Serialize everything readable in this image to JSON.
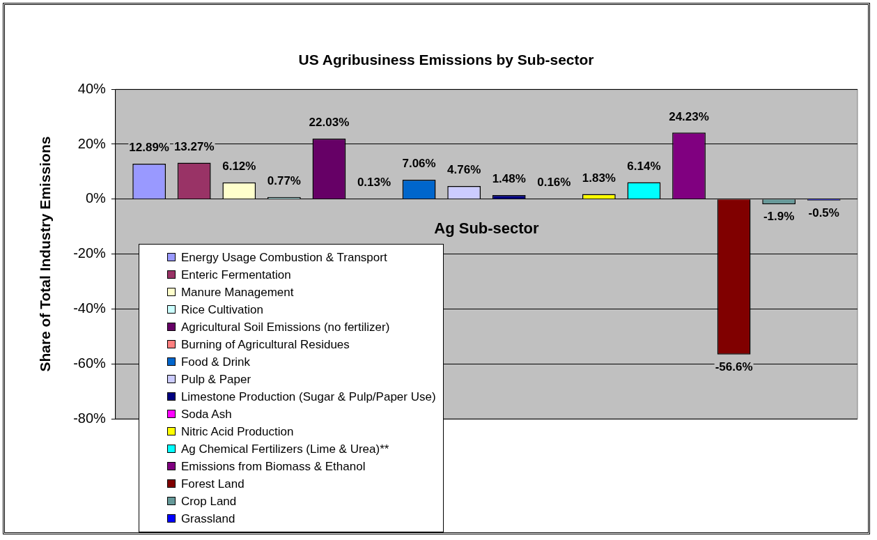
{
  "chart_data": {
    "type": "bar",
    "title": "US Agribusiness Emissions by Sub-sector",
    "xlabel": "Ag Sub-sector",
    "ylabel": "Share of Total Industry Emissions",
    "categories": [
      null
    ],
    "series": [
      {
        "name": "Energy Usage Combustion & Transport",
        "color": "#9999ff",
        "values": [
          12.89
        ],
        "value_labels": [
          "12.89%"
        ]
      },
      {
        "name": "Enteric Fermentation",
        "color": "#993366",
        "values": [
          13.27
        ],
        "value_labels": [
          "13.27%"
        ]
      },
      {
        "name": "Manure Management",
        "color": "#ffffcc",
        "values": [
          6.12
        ],
        "value_labels": [
          "6.12%"
        ]
      },
      {
        "name": "Rice Cultivation",
        "color": "#ccffff",
        "values": [
          0.77
        ],
        "value_labels": [
          "0.77%"
        ]
      },
      {
        "name": "Agricultural Soil Emissions (no fertilizer)",
        "color": "#660066",
        "values": [
          22.03
        ],
        "value_labels": [
          "22.03%"
        ]
      },
      {
        "name": "Burning of Agricultural Residues",
        "color": "#ff8080",
        "values": [
          0.13
        ],
        "value_labels": [
          "0.13%"
        ]
      },
      {
        "name": "Food & Drink",
        "color": "#0066cc",
        "values": [
          7.06
        ],
        "value_labels": [
          "7.06%"
        ]
      },
      {
        "name": "Pulp & Paper",
        "color": "#ccccff",
        "values": [
          4.76
        ],
        "value_labels": [
          "4.76%"
        ]
      },
      {
        "name": "Limestone Production (Sugar & Pulp/Paper Use)",
        "color": "#000080",
        "values": [
          1.48
        ],
        "value_labels": [
          "1.48%"
        ]
      },
      {
        "name": "Soda Ash",
        "color": "#ff00ff",
        "values": [
          0.16
        ],
        "value_labels": [
          "0.16%"
        ]
      },
      {
        "name": "Nitric Acid Production",
        "color": "#ffff00",
        "values": [
          1.83
        ],
        "value_labels": [
          "1.83%"
        ]
      },
      {
        "name": "Ag Chemical Fertilizers (Lime & Urea)**",
        "color": "#00ffff",
        "values": [
          6.14
        ],
        "value_labels": [
          "6.14%"
        ]
      },
      {
        "name": "Emissions from Biomass & Ethanol",
        "color": "#800080",
        "values": [
          24.23
        ],
        "value_labels": [
          "24.23%"
        ]
      },
      {
        "name": "Forest Land",
        "color": "#800000",
        "values": [
          -56.6
        ],
        "value_labels": [
          "-56.6%"
        ]
      },
      {
        "name": "Crop Land",
        "color": "#669999",
        "values": [
          -1.9
        ],
        "value_labels": [
          "-1.9%"
        ]
      },
      {
        "name": "Grassland",
        "color": "#0000ff",
        "values": [
          -0.5
        ],
        "value_labels": [
          "-0.5%"
        ]
      }
    ],
    "ylim": [
      -80,
      40
    ],
    "yticks": [
      {
        "value": -80,
        "label": "-80%"
      },
      {
        "value": -60,
        "label": "-60%"
      },
      {
        "value": -40,
        "label": "-40%"
      },
      {
        "value": -20,
        "label": "-20%"
      },
      {
        "value": 0,
        "label": "0%"
      },
      {
        "value": 20,
        "label": "20%"
      },
      {
        "value": 40,
        "label": "40%"
      }
    ],
    "grid": "y",
    "legend": "bottom left"
  }
}
